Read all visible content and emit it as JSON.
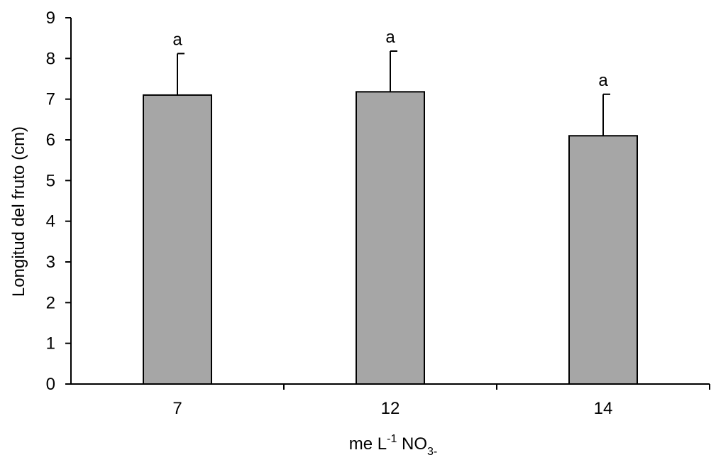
{
  "chart_data": {
    "type": "bar",
    "categories": [
      "7",
      "12",
      "14"
    ],
    "values": [
      7.1,
      7.18,
      6.1
    ],
    "errors": [
      1.02,
      1.0,
      1.02
    ],
    "significance": [
      "a",
      "a",
      "a"
    ],
    "title": "",
    "ylabel": "Longitud del fruto (cm)",
    "xlabel": {
      "prefix": "me L",
      "sup": "-1",
      "mid": " NO",
      "sub": "3-"
    },
    "ylim": [
      0,
      9
    ],
    "yticks": [
      0,
      1,
      2,
      3,
      4,
      5,
      6,
      7,
      8,
      9
    ],
    "grid": false,
    "legend": "none",
    "bar_color": "#a6a6a6",
    "edge_color": "#000000"
  }
}
